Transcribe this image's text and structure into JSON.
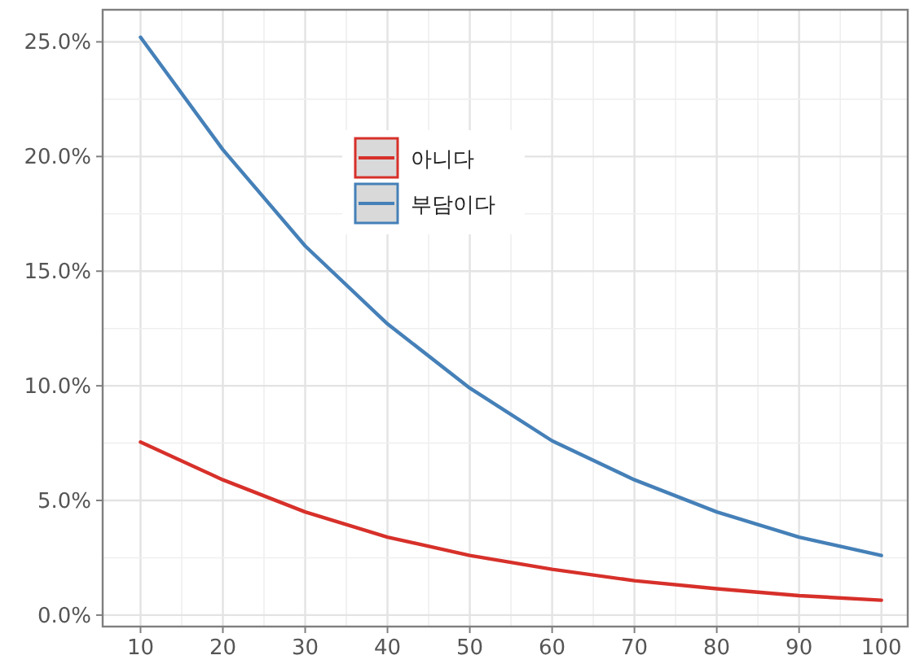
{
  "chart_data": {
    "type": "line",
    "x": [
      10,
      20,
      30,
      40,
      50,
      60,
      70,
      80,
      90,
      100
    ],
    "series": [
      {
        "name": "아니다",
        "color": "#d7302a",
        "values": [
          7.55,
          5.9,
          4.5,
          3.4,
          2.6,
          2.0,
          1.5,
          1.15,
          0.85,
          0.65
        ]
      },
      {
        "name": "부담이다",
        "color": "#4580b8",
        "values": [
          25.2,
          20.3,
          16.1,
          12.7,
          9.9,
          7.6,
          5.9,
          4.5,
          3.4,
          2.6
        ]
      }
    ],
    "xlim": [
      5.4,
      103.2
    ],
    "ylim": [
      -0.5,
      26.4
    ],
    "xticks": [
      10,
      20,
      30,
      40,
      50,
      60,
      70,
      80,
      90,
      100
    ],
    "yticks": [
      {
        "value": 0,
        "label": "0.0%"
      },
      {
        "value": 5,
        "label": "5.0%"
      },
      {
        "value": 10,
        "label": "10.0%"
      },
      {
        "value": 15,
        "label": "15.0%"
      },
      {
        "value": 20,
        "label": "20.0%"
      },
      {
        "value": 25,
        "label": "25.0%"
      }
    ],
    "grid": true,
    "legend": "top left",
    "marker": "none",
    "line_style": "solid"
  }
}
